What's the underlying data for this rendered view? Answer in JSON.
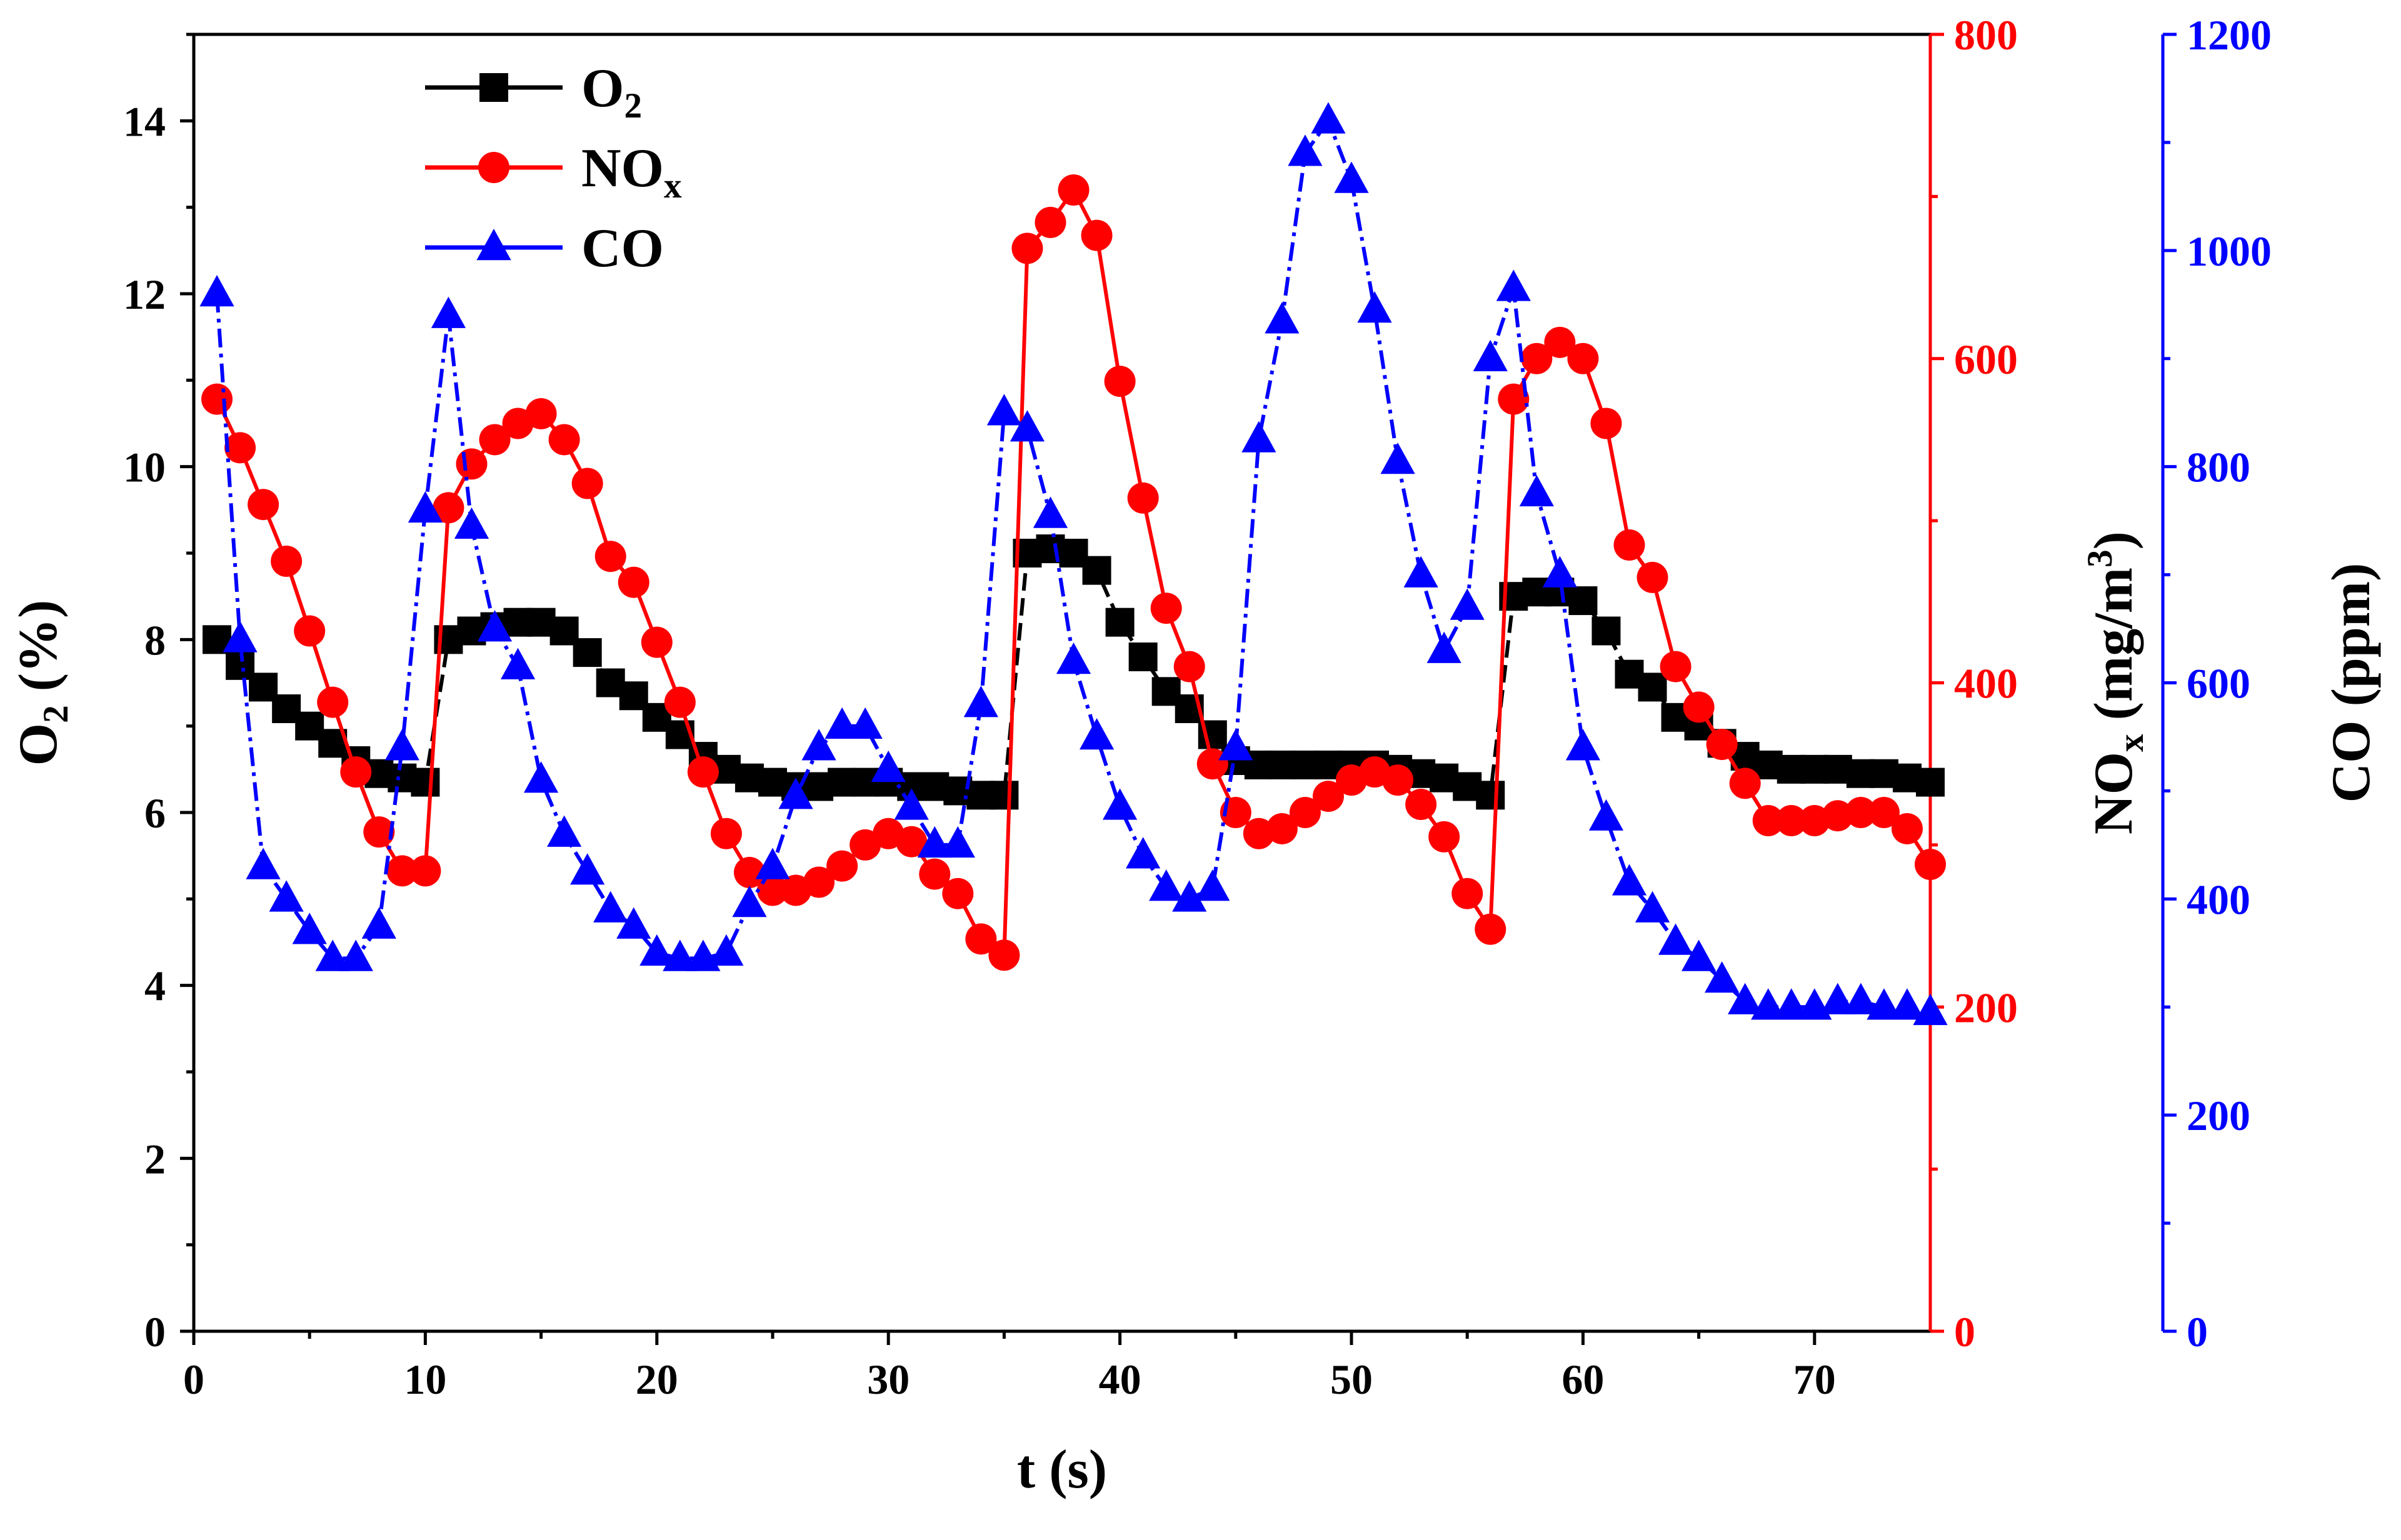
{
  "chart_data": {
    "type": "line",
    "title": "",
    "xlabel": "t (s)",
    "x_range": [
      0,
      75
    ],
    "x_ticks": [
      0,
      10,
      20,
      30,
      40,
      50,
      60,
      70
    ],
    "axes": {
      "left": {
        "label_main": "O",
        "label_sub": "2",
        "label_rest": " (%)",
        "range": [
          0,
          15
        ],
        "ticks": [
          0,
          2,
          4,
          6,
          8,
          10,
          12,
          14
        ],
        "color": "#000000"
      },
      "right1": {
        "label_main": "NO",
        "label_sub": "x",
        "label_rest": " (mg/m",
        "label_sup": "3",
        "label_close": ")",
        "range": [
          0,
          800
        ],
        "ticks": [
          0,
          200,
          400,
          600,
          800
        ],
        "color": "#ff0000"
      },
      "right2": {
        "label": "CO (ppm)",
        "range": [
          0,
          1200
        ],
        "ticks": [
          0,
          200,
          400,
          600,
          800,
          1000,
          1200
        ],
        "color": "#0000ff"
      }
    },
    "legend": {
      "position": "top-left",
      "entries": [
        {
          "main": "O",
          "sub": "2",
          "series": "O2"
        },
        {
          "main": "NO",
          "sub": "x",
          "series": "NOx"
        },
        {
          "main": "CO",
          "sub": "",
          "series": "CO"
        }
      ]
    },
    "series": [
      {
        "name": "O2",
        "axis": "left",
        "color": "#000000",
        "marker": "square",
        "line_style": "dash",
        "x": [
          1,
          2,
          3,
          4,
          5,
          6,
          7,
          8,
          9,
          10,
          11,
          12,
          13,
          14,
          15,
          16,
          17,
          18,
          19,
          20,
          21,
          22,
          23,
          24,
          25,
          26,
          27,
          28,
          29,
          30,
          31,
          32,
          33,
          34,
          35,
          36,
          37,
          38,
          39,
          40,
          41,
          42,
          43,
          44,
          45,
          46,
          47,
          48,
          49,
          50,
          51,
          52,
          53,
          54,
          55,
          56,
          57,
          58,
          59,
          60,
          61,
          62,
          63,
          64,
          65,
          66,
          67,
          68,
          69,
          70,
          71,
          72,
          73,
          74,
          75
        ],
        "values": [
          8.0,
          7.7,
          7.45,
          7.2,
          7.0,
          6.8,
          6.6,
          6.45,
          6.4,
          6.35,
          8.0,
          8.1,
          8.15,
          8.2,
          8.2,
          8.1,
          7.85,
          7.5,
          7.35,
          7.1,
          6.9,
          6.65,
          6.5,
          6.4,
          6.35,
          6.3,
          6.3,
          6.35,
          6.35,
          6.35,
          6.3,
          6.3,
          6.25,
          6.2,
          6.2,
          9.0,
          9.05,
          9.0,
          8.8,
          8.2,
          7.8,
          7.4,
          7.2,
          6.9,
          6.6,
          6.55,
          6.55,
          6.55,
          6.55,
          6.55,
          6.55,
          6.5,
          6.45,
          6.4,
          6.3,
          6.2,
          8.5,
          8.55,
          8.55,
          8.45,
          8.1,
          7.6,
          7.45,
          7.1,
          7.0,
          6.8,
          6.65,
          6.55,
          6.5,
          6.5,
          6.5,
          6.45,
          6.45,
          6.4,
          6.35
        ]
      },
      {
        "name": "NOx",
        "axis": "right1",
        "color": "#ff0000",
        "marker": "circle",
        "line_style": "solid",
        "x": [
          1,
          2,
          3,
          4,
          5,
          6,
          7,
          8,
          9,
          10,
          11,
          12,
          13,
          14,
          15,
          16,
          17,
          18,
          19,
          20,
          21,
          22,
          23,
          24,
          25,
          26,
          27,
          28,
          29,
          30,
          31,
          32,
          33,
          34,
          35,
          36,
          37,
          38,
          39,
          40,
          41,
          42,
          43,
          44,
          45,
          46,
          47,
          48,
          49,
          50,
          51,
          52,
          53,
          54,
          55,
          56,
          57,
          58,
          59,
          60,
          61,
          62,
          63,
          64,
          65,
          66,
          67,
          68,
          69,
          70,
          71,
          72,
          73,
          74,
          75
        ],
        "values": [
          575,
          545,
          510,
          475,
          432,
          388,
          345,
          308,
          284,
          284,
          508,
          535,
          550,
          560,
          566,
          550,
          523,
          478,
          462,
          425,
          388,
          345,
          307,
          283,
          272,
          272,
          277,
          287,
          300,
          307,
          302,
          282,
          270,
          242,
          232,
          668,
          684,
          704,
          676,
          586,
          514,
          446,
          410,
          350,
          320,
          307,
          310,
          320,
          330,
          340,
          345,
          340,
          325,
          305,
          270,
          248,
          575,
          600,
          610,
          600,
          560,
          485,
          465,
          410,
          385,
          362,
          338,
          315,
          315,
          315,
          318,
          320,
          320,
          310,
          288
        ]
      },
      {
        "name": "CO",
        "axis": "right2",
        "color": "#0000ff",
        "marker": "triangle",
        "line_style": "dashdot",
        "x": [
          1,
          2,
          3,
          4,
          5,
          6,
          7,
          8,
          9,
          10,
          11,
          12,
          13,
          14,
          15,
          16,
          17,
          18,
          19,
          20,
          21,
          22,
          23,
          24,
          25,
          26,
          27,
          28,
          29,
          30,
          31,
          32,
          33,
          34,
          35,
          36,
          37,
          38,
          39,
          40,
          41,
          42,
          43,
          44,
          45,
          46,
          47,
          48,
          49,
          50,
          51,
          52,
          53,
          54,
          55,
          56,
          57,
          58,
          59,
          60,
          61,
          62,
          63,
          64,
          65,
          66,
          67,
          68,
          69,
          70,
          71,
          72,
          73,
          74,
          75
        ],
        "values": [
          960,
          640,
          430,
          400,
          370,
          345,
          345,
          375,
          540,
          760,
          940,
          745,
          650,
          615,
          510,
          460,
          425,
          390,
          375,
          350,
          345,
          345,
          350,
          395,
          430,
          495,
          540,
          560,
          560,
          520,
          485,
          450,
          450,
          580,
          850,
          835,
          755,
          620,
          550,
          485,
          440,
          410,
          400,
          410,
          540,
          825,
          935,
          1090,
          1120,
          1065,
          945,
          805,
          700,
          630,
          670,
          900,
          965,
          775,
          700,
          540,
          475,
          415,
          390,
          360,
          345,
          325,
          305,
          300,
          300,
          300,
          305,
          305,
          300,
          300,
          295
        ]
      }
    ]
  }
}
